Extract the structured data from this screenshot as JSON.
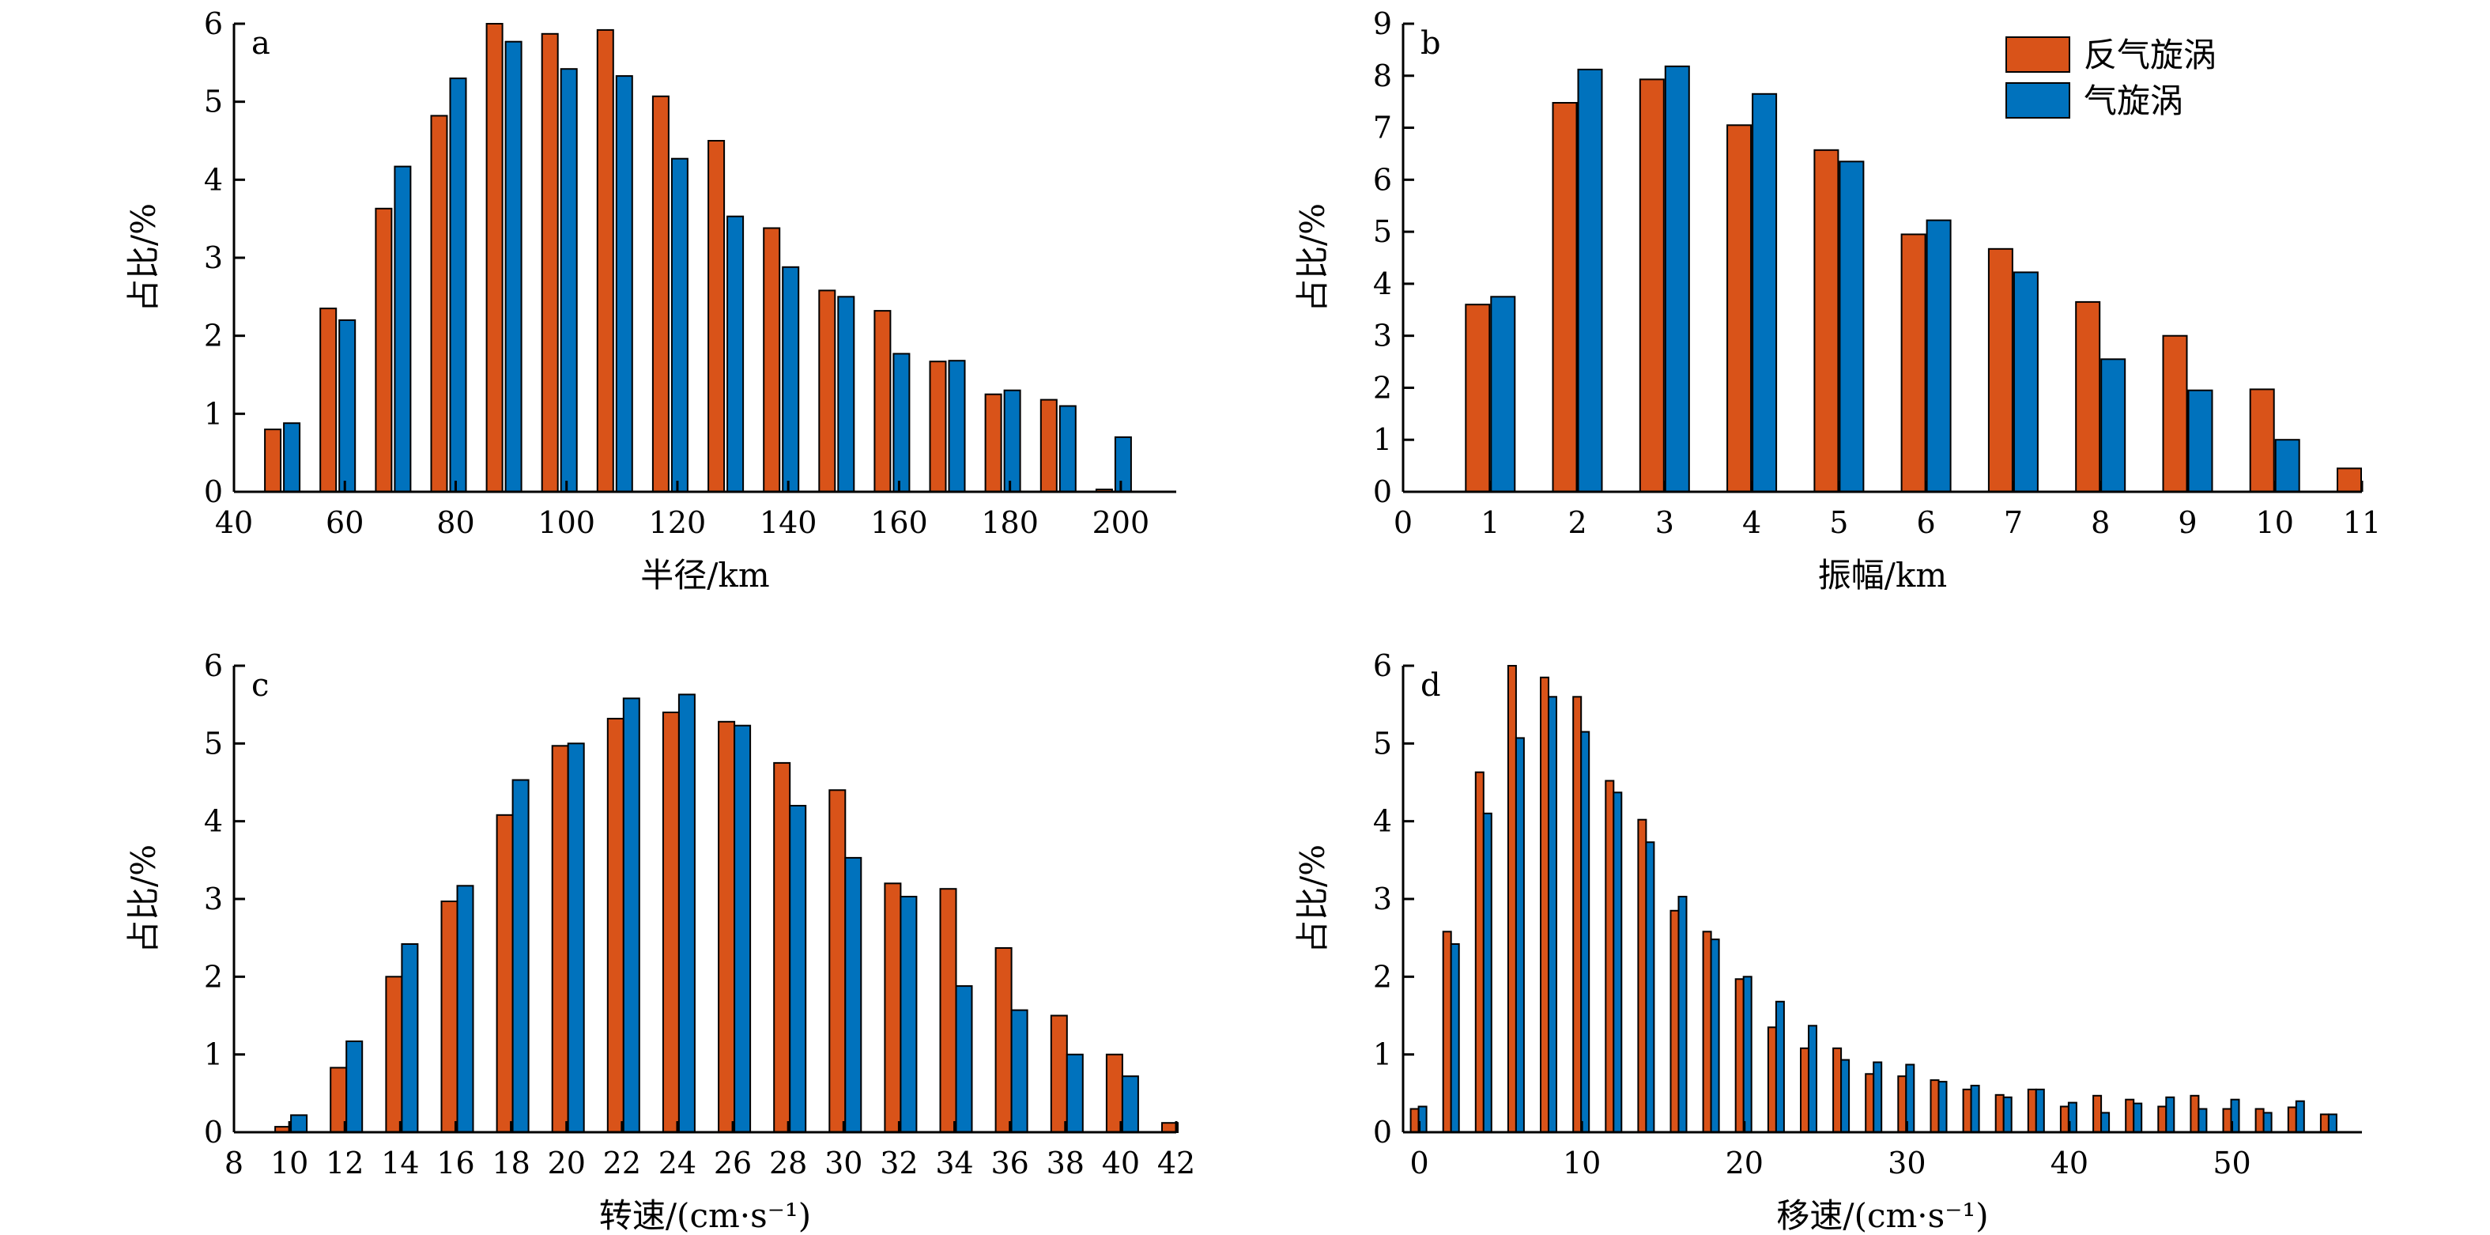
{
  "legend": {
    "anticyclonic": "反气旋涡",
    "cyclonic": "气旋涡"
  },
  "colors": {
    "anticyclonic": "#d95319",
    "cyclonic": "#0072bd",
    "edge": "#000000"
  },
  "chart_data": [
    {
      "type": "bar",
      "panel": "a",
      "xlabel": "半径/km",
      "ylabel": "占比/%",
      "xlim": [
        40,
        210
      ],
      "ylim": [
        0,
        6
      ],
      "xticks": [
        40,
        60,
        80,
        100,
        120,
        140,
        160,
        180,
        200
      ],
      "yticks": [
        0,
        1,
        2,
        3,
        4,
        5,
        6
      ],
      "x": [
        50,
        60,
        70,
        80,
        90,
        100,
        110,
        120,
        130,
        140,
        150,
        160,
        170,
        180,
        190,
        200
      ],
      "series": [
        {
          "name": "反气旋涡",
          "values": [
            0.8,
            2.35,
            3.63,
            4.82,
            6.0,
            5.87,
            5.92,
            5.07,
            4.5,
            3.38,
            2.58,
            2.32,
            1.67,
            1.25,
            1.18,
            0.03
          ]
        },
        {
          "name": "气旋涡",
          "values": [
            0.88,
            2.2,
            4.17,
            5.3,
            5.77,
            5.42,
            5.33,
            4.27,
            3.53,
            2.88,
            2.5,
            1.77,
            1.68,
            1.3,
            1.1,
            0.7
          ]
        }
      ]
    },
    {
      "type": "bar",
      "panel": "b",
      "xlabel": "振幅/km",
      "ylabel": "占比/%",
      "xlim": [
        0,
        11
      ],
      "ylim": [
        0,
        9
      ],
      "xticks": [
        0,
        1,
        2,
        3,
        4,
        5,
        6,
        7,
        8,
        9,
        10,
        11
      ],
      "yticks": [
        0,
        1,
        2,
        3,
        4,
        5,
        6,
        7,
        8,
        9
      ],
      "x": [
        1,
        2,
        3,
        4,
        5,
        6,
        7,
        8,
        9,
        10,
        11
      ],
      "series": [
        {
          "name": "反气旋涡",
          "values": [
            3.6,
            7.48,
            7.93,
            7.05,
            6.57,
            4.95,
            4.67,
            3.65,
            3.0,
            1.97,
            0.45
          ]
        },
        {
          "name": "气旋涡",
          "values": [
            3.75,
            8.12,
            8.18,
            7.65,
            6.35,
            5.22,
            4.22,
            2.55,
            1.95,
            1.0,
            null
          ]
        }
      ]
    },
    {
      "type": "bar",
      "panel": "c",
      "xlabel": "转速/(cm·s⁻¹)",
      "ylabel": "占比/%",
      "xlim": [
        8,
        42
      ],
      "ylim": [
        0,
        6
      ],
      "xticks": [
        8,
        10,
        12,
        14,
        16,
        18,
        20,
        22,
        24,
        26,
        28,
        30,
        32,
        34,
        36,
        38,
        40,
        42
      ],
      "yticks": [
        0,
        1,
        2,
        3,
        4,
        5,
        6
      ],
      "x": [
        10,
        12,
        14,
        16,
        18,
        20,
        22,
        24,
        26,
        28,
        30,
        32,
        34,
        36,
        38,
        40,
        42
      ],
      "series": [
        {
          "name": "反气旋涡",
          "values": [
            0.07,
            0.83,
            2.0,
            2.97,
            4.08,
            4.97,
            5.32,
            5.4,
            5.28,
            4.75,
            4.4,
            3.2,
            3.13,
            2.37,
            1.5,
            1.0,
            0.12
          ]
        },
        {
          "name": "气旋涡",
          "values": [
            0.22,
            1.17,
            2.42,
            3.17,
            4.53,
            5.0,
            5.58,
            5.63,
            5.23,
            4.2,
            3.53,
            3.03,
            1.88,
            1.57,
            1.0,
            0.72,
            null
          ]
        }
      ]
    },
    {
      "type": "bar",
      "panel": "d",
      "xlabel": "移速/(cm·s⁻¹)",
      "ylabel": "占比/%",
      "xlim": [
        -1,
        58
      ],
      "ylim": [
        0,
        6
      ],
      "xticks": [
        0,
        10,
        20,
        30,
        40,
        50
      ],
      "yticks": [
        0,
        1,
        2,
        3,
        4,
        5,
        6
      ],
      "x": [
        0,
        2,
        4,
        6,
        8,
        10,
        12,
        14,
        16,
        18,
        20,
        22,
        24,
        26,
        28,
        30,
        32,
        34,
        36,
        38,
        40,
        42,
        44,
        46,
        48,
        50,
        52,
        54,
        56
      ],
      "series": [
        {
          "name": "反气旋涡",
          "values": [
            0.3,
            2.58,
            4.63,
            6.0,
            5.85,
            5.6,
            4.52,
            4.02,
            2.85,
            2.58,
            1.97,
            1.35,
            1.08,
            1.08,
            0.75,
            0.72,
            0.67,
            0.55,
            0.48,
            0.55,
            0.33,
            0.47,
            0.42,
            0.33,
            0.47,
            0.3,
            0.3,
            0.32,
            0.23
          ]
        },
        {
          "name": "气旋涡",
          "values": [
            0.33,
            2.42,
            4.1,
            5.07,
            5.6,
            5.15,
            4.37,
            3.73,
            3.03,
            2.48,
            2.0,
            1.68,
            1.37,
            0.93,
            0.9,
            0.87,
            0.65,
            0.6,
            0.45,
            0.55,
            0.38,
            0.25,
            0.37,
            0.45,
            0.3,
            0.42,
            0.25,
            0.4,
            0.23
          ]
        }
      ]
    }
  ]
}
